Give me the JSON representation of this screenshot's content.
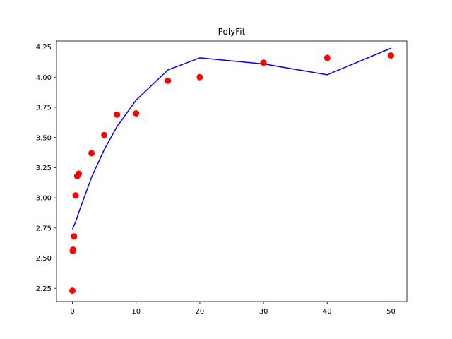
{
  "chart_data": {
    "type": "scatter",
    "title": "PolyFit",
    "xlabel": "",
    "ylabel": "",
    "xlim": [
      -2.5,
      52.5
    ],
    "ylim": [
      2.14,
      4.3
    ],
    "grid": false,
    "xticks": [
      0,
      10,
      20,
      30,
      40,
      50
    ],
    "xtick_labels": [
      "0",
      "10",
      "20",
      "30",
      "40",
      "50"
    ],
    "yticks": [
      2.25,
      2.5,
      2.75,
      3.0,
      3.25,
      3.5,
      3.75,
      4.0,
      4.25
    ],
    "ytick_labels": [
      "2.25",
      "2.50",
      "2.75",
      "3.00",
      "3.25",
      "3.50",
      "3.75",
      "4.00",
      "4.25"
    ],
    "series": [
      {
        "kind": "scatter",
        "color": "#ff0000",
        "points": [
          [
            0.0,
            2.23
          ],
          [
            0.05,
            2.56
          ],
          [
            0.1,
            2.57
          ],
          [
            0.25,
            2.68
          ],
          [
            0.5,
            3.02
          ],
          [
            0.75,
            3.18
          ],
          [
            1.0,
            3.2
          ],
          [
            3.0,
            3.37
          ],
          [
            5.0,
            3.52
          ],
          [
            7.0,
            3.69
          ],
          [
            10.0,
            3.7
          ],
          [
            15.0,
            3.97
          ],
          [
            20.0,
            4.0
          ],
          [
            30.0,
            4.12
          ],
          [
            40.0,
            4.16
          ],
          [
            50.0,
            4.18
          ]
        ]
      },
      {
        "kind": "line",
        "color": "#0000ff",
        "points": [
          [
            0.0,
            2.74
          ],
          [
            0.25,
            2.77
          ],
          [
            0.5,
            2.8
          ],
          [
            0.75,
            2.84
          ],
          [
            1.0,
            2.88
          ],
          [
            3.0,
            3.17
          ],
          [
            5.0,
            3.4
          ],
          [
            7.0,
            3.59
          ],
          [
            10.0,
            3.81
          ],
          [
            15.0,
            4.06
          ],
          [
            20.0,
            4.16
          ],
          [
            30.0,
            4.11
          ],
          [
            40.0,
            4.02
          ],
          [
            50.0,
            4.24
          ]
        ]
      }
    ]
  }
}
